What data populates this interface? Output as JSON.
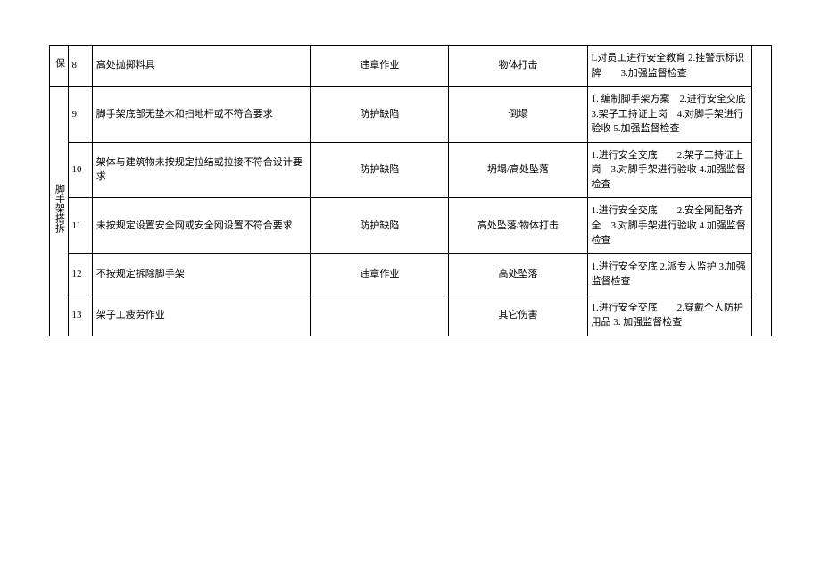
{
  "table": {
    "border_color": "#000000",
    "background_color": "#ffffff",
    "text_color": "#000000",
    "font_size": 11,
    "columns": [
      "category",
      "num",
      "risk",
      "type",
      "accident",
      "measures",
      "end"
    ],
    "vcat1": "保",
    "vcat2": "脚手架搭拆",
    "rows": [
      {
        "num": "8",
        "risk": "高处抛掷料具",
        "type": "违章作业",
        "accident": "物体打击",
        "measures": "L对员工进行安全教育 2.挂警示标识牌　　3.加强监督检查"
      },
      {
        "num": "9",
        "risk": "脚手架底部无垫木和扫地杆或不符合要求",
        "type": "防护缺陷",
        "accident": "倒塌",
        "measures": "1. 编制脚手架方案　2.进行安全交底　3.架子工持证上岗　4.对脚手架进行验收 5.加强监督检查"
      },
      {
        "num": "10",
        "risk": "架体与建筑物未按规定拉结或拉接不符合设计要求",
        "type": "防护缺陷",
        "accident": "坍塌/高处坠落",
        "measures": "1.进行安全交底　　2.架子工持证上岗　3.对脚手架进行验收 4.加强监督检查"
      },
      {
        "num": "11",
        "risk": "未按规定设置安全网或安全网设置不符合要求",
        "type": "防护缺陷",
        "accident": "高处坠落/物体打击",
        "measures": "1.进行安全交底　　2.安全网配备齐全　3.对脚手架进行验收 4.加强监督检查"
      },
      {
        "num": "12",
        "risk": "不按规定拆除脚手架",
        "type": "违章作业",
        "accident": "高处坠落",
        "measures": "1.进行安全交底 2.派专人监护 3.加强监督检查"
      },
      {
        "num": "13",
        "risk": "架子工疲劳作业",
        "type": "",
        "accident": "其它伤害",
        "measures": "1.进行安全交底　　2.穿戴个人防护用品 3. 加强监督检查"
      }
    ]
  }
}
